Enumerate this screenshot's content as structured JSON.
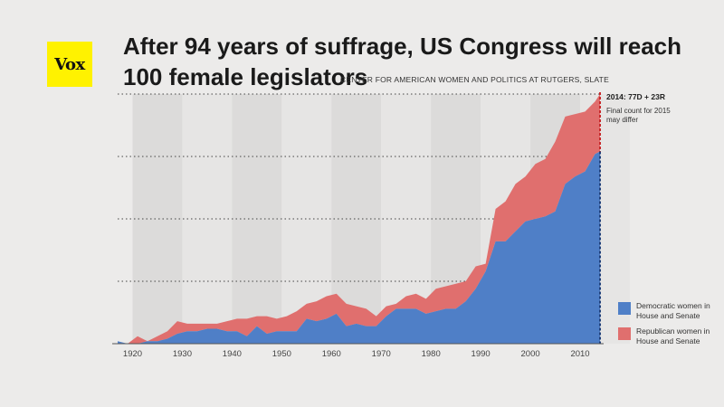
{
  "logo": {
    "text": "Vox",
    "color": "#fff200"
  },
  "title_line1": "After 94 years of suffrage, US Congress will reach",
  "title_line2": "100 female legislators",
  "source": "CENTER FOR AMERICAN WOMEN AND POLITICS AT RUTGERS, SLATE",
  "annotation": {
    "title": "2014: 77D + 23R",
    "note": "Final count for 2015 may differ"
  },
  "legend": [
    {
      "label": "Democratic women in House and Senate",
      "color": "#4f7fc7"
    },
    {
      "label": "Republican women in House and Senate",
      "color": "#e06f6e"
    }
  ],
  "chart_data": {
    "type": "area",
    "stacked": true,
    "title": "After 94 years of suffrage, US Congress will reach 100 female legislators",
    "x_tick_labels": [
      "1920",
      "1930",
      "1940",
      "1950",
      "1960",
      "1970",
      "1980",
      "1990",
      "2000",
      "2010"
    ],
    "xlim": [
      1917,
      2014
    ],
    "ylim": [
      0,
      100
    ],
    "gridlines_y": [
      25,
      50,
      75,
      100
    ],
    "x": [
      1917,
      1919,
      1921,
      1923,
      1925,
      1927,
      1929,
      1931,
      1933,
      1935,
      1937,
      1939,
      1941,
      1943,
      1945,
      1947,
      1949,
      1951,
      1953,
      1955,
      1957,
      1959,
      1961,
      1963,
      1965,
      1967,
      1969,
      1971,
      1973,
      1975,
      1977,
      1979,
      1981,
      1983,
      1985,
      1987,
      1989,
      1991,
      1993,
      1995,
      1997,
      1999,
      2001,
      2003,
      2005,
      2007,
      2009,
      2011,
      2013,
      2014
    ],
    "series": [
      {
        "name": "Democratic women in House and Senate",
        "color": "#4f7fc7",
        "values": [
          1,
          0,
          0,
          1,
          1,
          2,
          4,
          5,
          5,
          6,
          6,
          5,
          5,
          3,
          7,
          4,
          5,
          5,
          5,
          10,
          9,
          10,
          12,
          7,
          8,
          7,
          7,
          11,
          14,
          14,
          14,
          12,
          13,
          14,
          14,
          17,
          22,
          29,
          41,
          41,
          45,
          49,
          50,
          51,
          53,
          64,
          67,
          69,
          76,
          77
        ]
      },
      {
        "name": "Republican women in House and Senate",
        "color": "#e06f6e",
        "values": [
          0,
          0,
          3,
          0,
          2,
          3,
          5,
          3,
          3,
          2,
          2,
          4,
          5,
          7,
          4,
          7,
          5,
          6,
          8,
          6,
          8,
          9,
          8,
          9,
          7,
          7,
          4,
          4,
          2,
          5,
          6,
          6,
          9,
          9,
          10,
          8,
          9,
          3,
          13,
          16,
          19,
          18,
          22,
          23,
          28,
          27,
          25,
          24,
          21,
          23
        ]
      }
    ]
  }
}
